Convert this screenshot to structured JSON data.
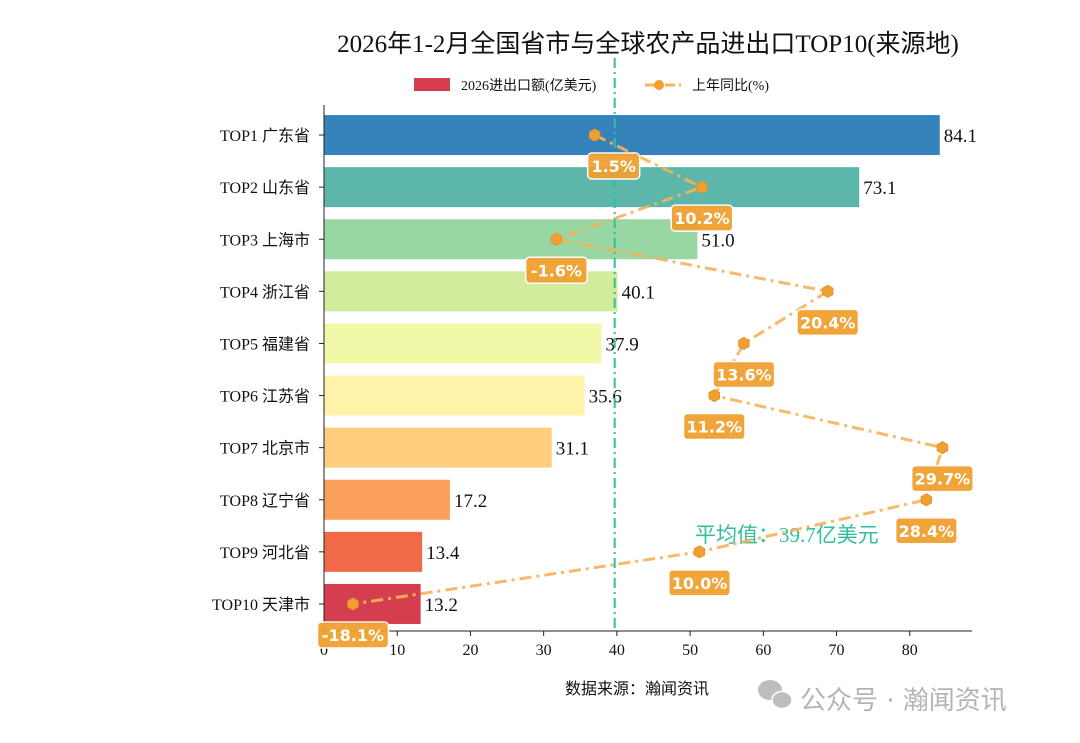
{
  "chart_data": {
    "type": "bar",
    "orientation": "horizontal",
    "title": "2026年1-2月全国省市与全球农产品进出口TOP10(来源地)",
    "categories": [
      "TOP1 广东省",
      "TOP2 山东省",
      "TOP3 上海市",
      "TOP4 浙江省",
      "TOP5 福建省",
      "TOP6 江苏省",
      "TOP7 北京市",
      "TOP8 辽宁省",
      "TOP9 河北省",
      "TOP10 天津市"
    ],
    "series": [
      {
        "name": "2026进出口额(亿美元)",
        "type": "bar",
        "values": [
          84.1,
          73.1,
          51.0,
          40.1,
          37.9,
          35.6,
          31.1,
          17.2,
          13.4,
          13.2
        ],
        "colors": [
          "#3682ba",
          "#5cb7aa",
          "#98d6a4",
          "#d1ec9c",
          "#f1f9a9",
          "#fff3aa",
          "#fece7c",
          "#fba05b",
          "#f06a47",
          "#d53e4f"
        ]
      },
      {
        "name": "上年同比(%)",
        "type": "line",
        "values": [
          1.5,
          10.2,
          -1.6,
          20.4,
          13.6,
          11.2,
          29.7,
          28.4,
          10.0,
          -18.1
        ],
        "labels": [
          "1.5%",
          "10.2%",
          "-1.6%",
          "20.4%",
          "13.6%",
          "11.2%",
          "29.7%",
          "28.4%",
          "10.0%",
          "-18.1%"
        ],
        "color": "#f5b35a",
        "xlim": [
          -20.45,
          32.1
        ]
      }
    ],
    "xlim": [
      0,
      88.5
    ],
    "xticks": [
      "0",
      "10",
      "20",
      "30",
      "40",
      "50",
      "60",
      "70",
      "80"
    ],
    "average": {
      "value": 39.7,
      "label": "平均值：39.7亿美元",
      "color": "#2fbf9f"
    },
    "legend": "top-center",
    "grid": false
  },
  "source": "数据来源：瀚闻资讯",
  "watermark": "公众号 · 瀚闻资讯"
}
